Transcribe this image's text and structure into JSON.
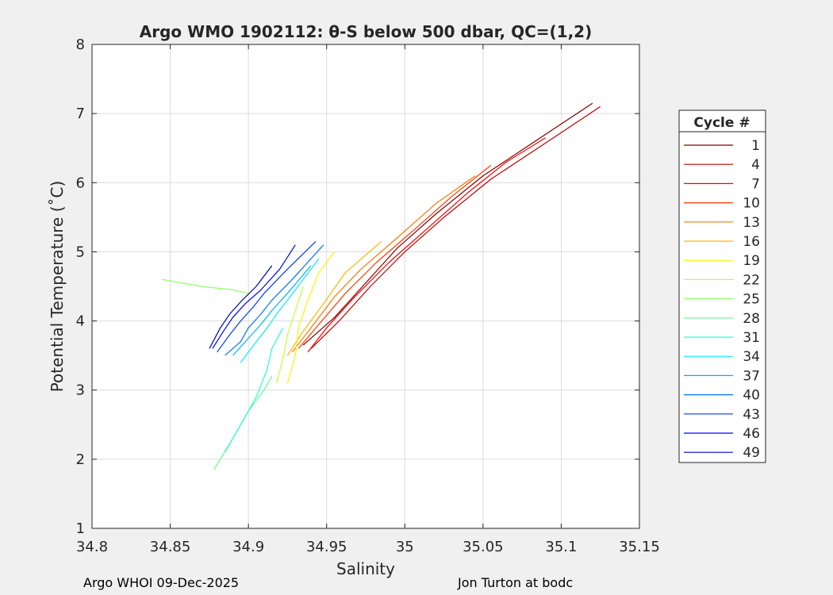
{
  "footer": {
    "left": "Argo WHOI 09-Dec-2025",
    "right": "Jon Turton at bodc"
  },
  "chart_data": {
    "type": "line",
    "title": "Argo WMO 1902112: θ-S below 500 dbar,  QC=(1,2)",
    "xlabel": "Salinity",
    "ylabel": "Potential Temperature (˚C)",
    "xlim": [
      34.8,
      35.15
    ],
    "ylim": [
      1,
      8
    ],
    "x_ticks": [
      34.8,
      34.85,
      34.9,
      34.95,
      35.0,
      35.05,
      35.1,
      35.15
    ],
    "x_tick_labels": [
      "34.8",
      "34.85",
      "34.9",
      "34.95",
      "35",
      "35.05",
      "35.1",
      "35.15"
    ],
    "y_ticks": [
      1,
      2,
      3,
      4,
      5,
      6,
      7,
      8
    ],
    "y_tick_labels": [
      "1",
      "2",
      "3",
      "4",
      "5",
      "6",
      "7",
      "8"
    ],
    "grid": true,
    "legend": {
      "title": "Cycle #",
      "placement": "right-outside",
      "entries": [
        "1",
        "4",
        "7",
        "10",
        "13",
        "16",
        "19",
        "22",
        "25",
        "28",
        "31",
        "34",
        "37",
        "40",
        "43",
        "46",
        "49"
      ],
      "colors": [
        "#800000",
        "#bd0000",
        "#fb0000",
        "#ff3900",
        "#ff7700",
        "#ffb500",
        "#f4f802",
        "#c0ff36",
        "#8cff6a",
        "#59ff9d",
        "#25ffd0",
        "#00ecff",
        "#00b0ff",
        "#0074ff",
        "#0038ff",
        "#0000fa",
        "#0000be"
      ]
    },
    "series": [
      {
        "name": "1",
        "color": "#800000",
        "x": [
          34.935,
          34.955,
          34.975,
          34.995,
          35.02,
          35.05,
          35.08,
          35.1,
          35.12
        ],
        "y": [
          3.65,
          4.05,
          4.55,
          5.05,
          5.55,
          6.1,
          6.55,
          6.85,
          7.15
        ]
      },
      {
        "name": "4",
        "color": "#bd0000",
        "x": [
          34.94,
          34.958,
          34.978,
          35.0,
          35.025,
          35.055,
          35.085,
          35.105,
          35.125
        ],
        "y": [
          3.6,
          4.0,
          4.5,
          5.0,
          5.5,
          6.05,
          6.5,
          6.8,
          7.1
        ]
      },
      {
        "name": "7",
        "color": "#fb0000",
        "x": [
          34.938,
          34.95,
          34.968,
          34.99,
          35.015,
          35.04,
          35.065,
          35.09
        ],
        "y": [
          3.55,
          3.9,
          4.35,
          4.85,
          5.35,
          5.85,
          6.3,
          6.65
        ]
      },
      {
        "name": "10",
        "color": "#ff3900",
        "x": [
          34.932,
          34.945,
          34.962,
          34.982,
          35.005,
          35.03,
          35.055
        ],
        "y": [
          3.6,
          3.95,
          4.4,
          4.85,
          5.3,
          5.8,
          6.25
        ]
      },
      {
        "name": "13",
        "color": "#ff7700",
        "x": [
          34.928,
          34.94,
          34.955,
          34.972,
          34.995,
          35.02,
          35.045
        ],
        "y": [
          3.55,
          3.9,
          4.35,
          4.75,
          5.2,
          5.7,
          6.1
        ]
      },
      {
        "name": "16",
        "color": "#ffb500",
        "x": [
          34.925,
          34.935,
          34.948,
          34.962,
          34.985
        ],
        "y": [
          3.5,
          3.85,
          4.25,
          4.7,
          5.15
        ]
      },
      {
        "name": "19",
        "color": "#f4f802",
        "x": [
          34.925,
          34.93,
          34.932,
          34.938,
          34.945,
          34.955
        ],
        "y": [
          3.1,
          3.5,
          3.9,
          4.3,
          4.7,
          5.0
        ]
      },
      {
        "name": "22",
        "color": "#c0ff36",
        "x": [
          34.918,
          34.922,
          34.925,
          34.93,
          34.935
        ],
        "y": [
          3.1,
          3.45,
          3.8,
          4.15,
          4.5
        ]
      },
      {
        "name": "25",
        "color": "#8cff6a",
        "x": [
          34.845,
          34.87,
          34.89,
          34.9
        ],
        "y": [
          4.6,
          4.5,
          4.45,
          4.4
        ]
      },
      {
        "name": "28",
        "color": "#59ff9d",
        "x": [
          34.878,
          34.89,
          34.9,
          34.91,
          34.915
        ],
        "y": [
          1.85,
          2.3,
          2.7,
          3.0,
          3.2
        ]
      },
      {
        "name": "31",
        "color": "#25ffd0",
        "x": [
          34.885,
          34.895,
          34.905,
          34.912,
          34.915,
          34.922
        ],
        "y": [
          2.1,
          2.5,
          2.9,
          3.3,
          3.6,
          3.9
        ]
      },
      {
        "name": "34",
        "color": "#00ecff",
        "x": [
          34.895,
          34.905,
          34.912,
          34.918,
          34.925,
          34.935,
          34.945
        ],
        "y": [
          3.4,
          3.7,
          3.9,
          4.1,
          4.3,
          4.6,
          4.9
        ]
      },
      {
        "name": "37",
        "color": "#00b0ff",
        "x": [
          34.89,
          34.9,
          34.908,
          34.915,
          34.925,
          34.94
        ],
        "y": [
          3.5,
          3.75,
          3.95,
          4.15,
          4.4,
          4.8
        ]
      },
      {
        "name": "40",
        "color": "#0074ff",
        "x": [
          34.885,
          34.895,
          34.9,
          34.908,
          34.915,
          34.928,
          34.948
        ],
        "y": [
          3.5,
          3.7,
          3.9,
          4.1,
          4.3,
          4.6,
          5.1
        ]
      },
      {
        "name": "43",
        "color": "#0038ff",
        "x": [
          34.88,
          34.888,
          34.895,
          34.903,
          34.91,
          34.925,
          34.943
        ],
        "y": [
          3.55,
          3.8,
          4.0,
          4.2,
          4.4,
          4.75,
          5.15
        ]
      },
      {
        "name": "46",
        "color": "#0000fa",
        "x": [
          34.877,
          34.884,
          34.89,
          34.898,
          34.908,
          34.92,
          34.93
        ],
        "y": [
          3.6,
          3.85,
          4.05,
          4.25,
          4.45,
          4.75,
          5.1
        ]
      },
      {
        "name": "49",
        "color": "#0000be",
        "x": [
          34.875,
          34.882,
          34.888,
          34.896,
          34.905,
          34.915
        ],
        "y": [
          3.6,
          3.9,
          4.1,
          4.3,
          4.5,
          4.8
        ]
      }
    ]
  }
}
